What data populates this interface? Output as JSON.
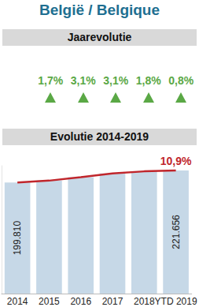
{
  "title": "België / Belgique",
  "jaarevolutie": {
    "title": "Jaarevolutie",
    "values": [
      "1,7%",
      "3,1%",
      "3,1%",
      "1,8%",
      "0,8%"
    ],
    "color": "#5aa845"
  },
  "chart_data": {
    "type": "bar",
    "title": "Evolutie 2014-2019",
    "categories": [
      "2014",
      "2015",
      "2016",
      "2017",
      "2018",
      "YTD 2019"
    ],
    "series": [
      {
        "type": "bar",
        "color": "#c6d8e7",
        "values": [
          199810,
          203207,
          209506,
          215998,
          219886,
          221656
        ],
        "value_labels": [
          "199.810",
          null,
          null,
          null,
          null,
          "221.656"
        ]
      },
      {
        "type": "line",
        "color": "#c0262c",
        "values": [
          199810,
          203207,
          209506,
          215998,
          219886,
          221656
        ]
      }
    ],
    "ylim": [
      0,
      230000
    ],
    "grid": false,
    "tick_labels": "x",
    "data_labels": true,
    "annotations": [
      {
        "text": "10,9%",
        "x": "YTD 2019",
        "color": "#c0262c"
      }
    ]
  }
}
